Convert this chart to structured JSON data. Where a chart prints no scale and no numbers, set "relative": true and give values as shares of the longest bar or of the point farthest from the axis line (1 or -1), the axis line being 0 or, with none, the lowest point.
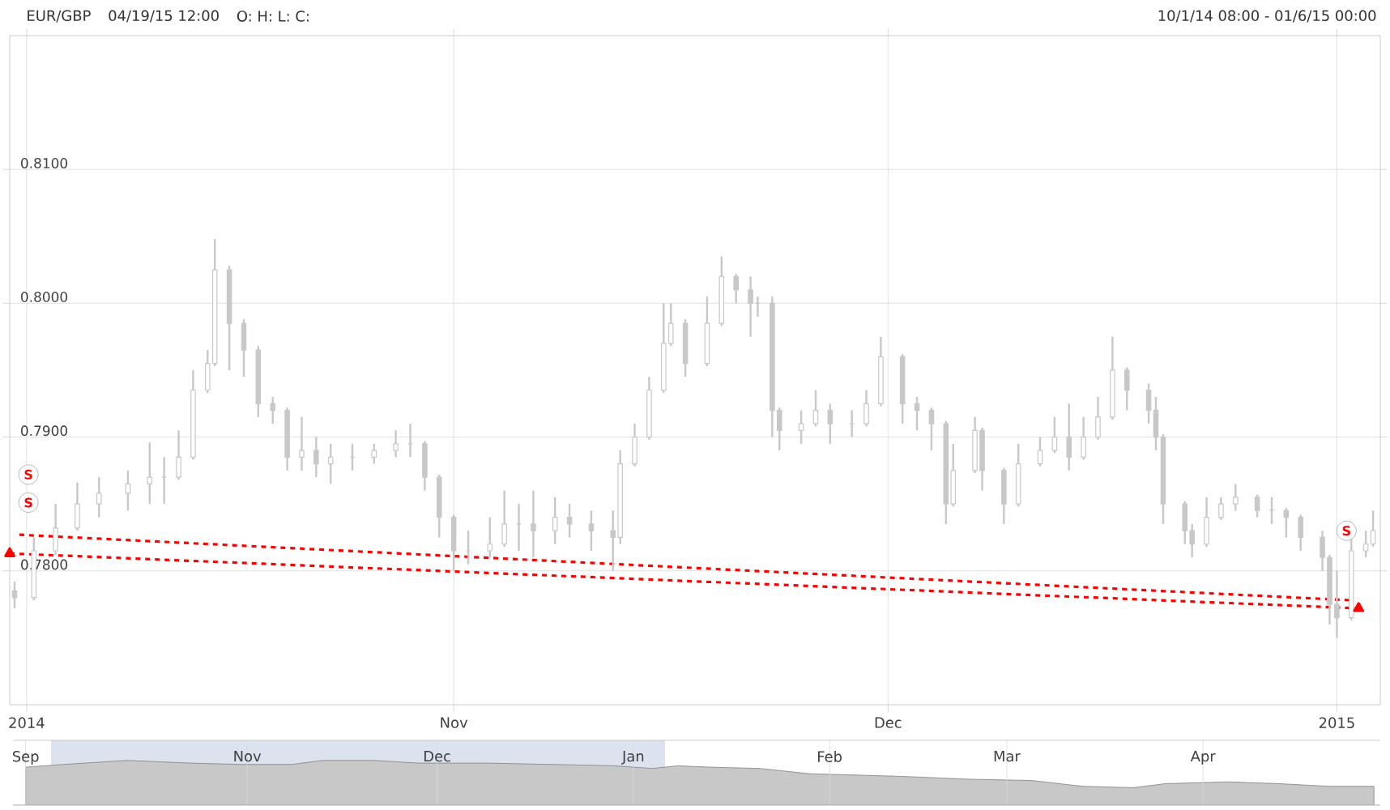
{
  "chart_data": [
    {
      "type": "candlestick",
      "title": "EUR/GBP",
      "annotations": [
        "04/19/15 12:00",
        "O: H: L: C:",
        "10/1/14 08:00 - 01/6/15 00:00",
        {
          "text": "S",
          "x": "2014-10-02T15:00",
          "y": 0.7872
        },
        {
          "text": "S",
          "x": "2014-10-02T15:00",
          "y": 0.7851
        },
        {
          "text": "S",
          "x": "2015-01-01T16:00",
          "y": 0.783
        }
      ],
      "color": "#c8c8c8",
      "x": [
        "2014-10-01T16:00",
        "2014-10-03T00:00",
        "2014-10-04T12:00",
        "2014-10-06T00:00",
        "2014-10-07T12:00",
        "2014-10-09T12:00",
        "2014-10-11T00:00",
        "2014-10-12T00:00",
        "2014-10-13T00:00",
        "2014-10-14T00:00",
        "2014-10-15T00:00",
        "2014-10-15T12:00",
        "2014-10-16T12:00",
        "2014-10-17T12:00",
        "2014-10-18T12:00",
        "2014-10-19T12:00",
        "2014-10-20T12:00",
        "2014-10-21T12:00",
        "2014-10-22T12:00",
        "2014-10-23T12:00",
        "2014-10-25T00:00",
        "2014-10-26T12:00",
        "2014-10-28T00:00",
        "2014-10-29T00:00",
        "2014-10-30T00:00",
        "2014-10-31T00:00",
        "2014-11-01T00:00",
        "2014-11-02T00:00",
        "2014-11-03T12:00",
        "2014-11-04T12:00",
        "2014-11-05T12:00",
        "2014-11-06T12:00",
        "2014-11-08T00:00",
        "2014-11-09T00:00",
        "2014-11-10T12:00",
        "2014-11-12T00:00",
        "2014-11-12T12:00",
        "2014-11-13T12:00",
        "2014-11-14T12:00",
        "2014-11-15T12:00",
        "2014-11-16T00:00",
        "2014-11-17T00:00",
        "2014-11-18T12:00",
        "2014-11-19T12:00",
        "2014-11-20T12:00",
        "2014-11-21T12:00",
        "2014-11-22T00:00",
        "2014-11-23T00:00",
        "2014-11-23T12:00",
        "2014-11-25T00:00",
        "2014-11-26T00:00",
        "2014-11-27T00:00",
        "2014-11-28T12:00",
        "2014-11-29T12:00",
        "2014-11-30T12:00",
        "2014-12-02T00:00",
        "2014-12-03T00:00",
        "2014-12-04T00:00",
        "2014-12-05T00:00",
        "2014-12-05T12:00",
        "2014-12-07T00:00",
        "2014-12-07T12:00",
        "2014-12-09T00:00",
        "2014-12-10T00:00",
        "2014-12-11T12:00",
        "2014-12-12T12:00",
        "2014-12-13T12:00",
        "2014-12-14T12:00",
        "2014-12-15T12:00",
        "2014-12-16T12:00",
        "2014-12-17T12:00",
        "2014-12-19T00:00",
        "2014-12-19T12:00",
        "2014-12-20T00:00",
        "2014-12-21T12:00",
        "2014-12-22T00:00",
        "2014-12-23T00:00",
        "2014-12-24T00:00",
        "2014-12-25T00:00",
        "2014-12-26T12:00",
        "2014-12-27T12:00",
        "2014-12-28T12:00",
        "2014-12-29T12:00",
        "2014-12-31T00:00",
        "2014-12-31T12:00",
        "2015-01-01T00:00",
        "2015-01-02T00:00",
        "2015-01-03T00:00",
        "2015-01-03T12:00"
      ],
      "ohlc": [
        [
          0.7785,
          0.7792,
          0.7772,
          0.778
        ],
        [
          0.778,
          0.7825,
          0.7778,
          0.7815
        ],
        [
          0.7815,
          0.785,
          0.7812,
          0.7832
        ],
        [
          0.7832,
          0.7866,
          0.783,
          0.785
        ],
        [
          0.785,
          0.787,
          0.784,
          0.7858
        ],
        [
          0.7858,
          0.7875,
          0.7845,
          0.7865
        ],
        [
          0.7865,
          0.7896,
          0.785,
          0.787
        ],
        [
          0.787,
          0.7885,
          0.785,
          0.787
        ],
        [
          0.787,
          0.7905,
          0.7868,
          0.7885
        ],
        [
          0.7885,
          0.795,
          0.7883,
          0.7935
        ],
        [
          0.7935,
          0.7965,
          0.7933,
          0.7955
        ],
        [
          0.7955,
          0.8048,
          0.7953,
          0.8025
        ],
        [
          0.8025,
          0.8028,
          0.795,
          0.7985
        ],
        [
          0.7985,
          0.7988,
          0.7945,
          0.7965
        ],
        [
          0.7965,
          0.7968,
          0.7915,
          0.7925
        ],
        [
          0.7925,
          0.793,
          0.791,
          0.792
        ],
        [
          0.792,
          0.7922,
          0.7875,
          0.7885
        ],
        [
          0.7885,
          0.7915,
          0.7875,
          0.789
        ],
        [
          0.789,
          0.79,
          0.787,
          0.788
        ],
        [
          0.788,
          0.7895,
          0.7865,
          0.7885
        ],
        [
          0.7885,
          0.7895,
          0.7875,
          0.7885
        ],
        [
          0.7885,
          0.7895,
          0.788,
          0.789
        ],
        [
          0.789,
          0.7905,
          0.7885,
          0.7895
        ],
        [
          0.7895,
          0.791,
          0.7885,
          0.7895
        ],
        [
          0.7895,
          0.7897,
          0.786,
          0.787
        ],
        [
          0.787,
          0.7872,
          0.7825,
          0.784
        ],
        [
          0.784,
          0.7842,
          0.78,
          0.7815
        ],
        [
          0.7815,
          0.783,
          0.7805,
          0.7815
        ],
        [
          0.7815,
          0.784,
          0.781,
          0.782
        ],
        [
          0.782,
          0.786,
          0.7818,
          0.7835
        ],
        [
          0.7835,
          0.785,
          0.7815,
          0.7835
        ],
        [
          0.7835,
          0.786,
          0.781,
          0.783
        ],
        [
          0.783,
          0.7855,
          0.782,
          0.784
        ],
        [
          0.784,
          0.785,
          0.7825,
          0.7835
        ],
        [
          0.7835,
          0.7845,
          0.7815,
          0.783
        ],
        [
          0.783,
          0.7845,
          0.78,
          0.7825
        ],
        [
          0.7825,
          0.789,
          0.782,
          0.788
        ],
        [
          0.788,
          0.791,
          0.7878,
          0.79
        ],
        [
          0.79,
          0.7945,
          0.7898,
          0.7935
        ],
        [
          0.7935,
          0.8,
          0.7933,
          0.797
        ],
        [
          0.797,
          0.8,
          0.7968,
          0.7985
        ],
        [
          0.7985,
          0.7988,
          0.7945,
          0.7955
        ],
        [
          0.7955,
          0.8005,
          0.7953,
          0.7985
        ],
        [
          0.7985,
          0.8035,
          0.7983,
          0.802
        ],
        [
          0.802,
          0.8022,
          0.8,
          0.801
        ],
        [
          0.801,
          0.802,
          0.7975,
          0.8
        ],
        [
          0.8,
          0.8005,
          0.799,
          0.8
        ],
        [
          0.8,
          0.8005,
          0.79,
          0.792
        ],
        [
          0.792,
          0.7922,
          0.789,
          0.7905
        ],
        [
          0.7905,
          0.792,
          0.7895,
          0.791
        ],
        [
          0.791,
          0.7935,
          0.7908,
          0.792
        ],
        [
          0.792,
          0.7925,
          0.7895,
          0.791
        ],
        [
          0.791,
          0.792,
          0.79,
          0.791
        ],
        [
          0.791,
          0.7935,
          0.7908,
          0.7925
        ],
        [
          0.7925,
          0.7975,
          0.7923,
          0.796
        ],
        [
          0.796,
          0.7962,
          0.791,
          0.7925
        ],
        [
          0.7925,
          0.793,
          0.7905,
          0.792
        ],
        [
          0.792,
          0.7922,
          0.789,
          0.791
        ],
        [
          0.791,
          0.7912,
          0.7835,
          0.785
        ],
        [
          0.785,
          0.7895,
          0.7848,
          0.7875
        ],
        [
          0.7875,
          0.7915,
          0.7873,
          0.7905
        ],
        [
          0.7905,
          0.7907,
          0.786,
          0.7875
        ],
        [
          0.7875,
          0.7877,
          0.7835,
          0.785
        ],
        [
          0.785,
          0.7895,
          0.7848,
          0.788
        ],
        [
          0.788,
          0.79,
          0.7878,
          0.789
        ],
        [
          0.789,
          0.7915,
          0.7888,
          0.79
        ],
        [
          0.79,
          0.7925,
          0.7875,
          0.7885
        ],
        [
          0.7885,
          0.7915,
          0.7883,
          0.79
        ],
        [
          0.79,
          0.793,
          0.7898,
          0.7915
        ],
        [
          0.7915,
          0.7975,
          0.7913,
          0.795
        ],
        [
          0.795,
          0.7952,
          0.792,
          0.7935
        ],
        [
          0.7935,
          0.794,
          0.791,
          0.792
        ],
        [
          0.792,
          0.793,
          0.789,
          0.79
        ],
        [
          0.79,
          0.7902,
          0.7835,
          0.785
        ],
        [
          0.785,
          0.7852,
          0.782,
          0.783
        ],
        [
          0.783,
          0.7835,
          0.781,
          0.782
        ],
        [
          0.782,
          0.7855,
          0.7818,
          0.784
        ],
        [
          0.784,
          0.7855,
          0.7838,
          0.785
        ],
        [
          0.785,
          0.7865,
          0.7845,
          0.7855
        ],
        [
          0.7855,
          0.7857,
          0.784,
          0.7845
        ],
        [
          0.7845,
          0.7855,
          0.7835,
          0.7845
        ],
        [
          0.7845,
          0.7847,
          0.7825,
          0.784
        ],
        [
          0.784,
          0.7842,
          0.7815,
          0.7825
        ],
        [
          0.7825,
          0.783,
          0.78,
          0.781
        ],
        [
          0.781,
          0.7812,
          0.776,
          0.7775
        ],
        [
          0.7775,
          0.78,
          0.775,
          0.7765
        ],
        [
          0.7765,
          0.7825,
          0.7763,
          0.7815
        ],
        [
          0.7815,
          0.783,
          0.781,
          0.782
        ],
        [
          0.782,
          0.7845,
          0.7818,
          0.783
        ]
      ],
      "series": [
        {
          "type": "line",
          "x": [
            "2014-10-01T08:00",
            "2015-01-02T12:00"
          ],
          "values": [
            0.7813,
            0.7772
          ],
          "color": "#ff0000",
          "line_style": "dashed",
          "marker": "triangle"
        },
        {
          "type": "line",
          "x": [
            "2014-10-02T00:00",
            "2015-01-02T00:00"
          ],
          "values": [
            0.7827,
            0.7778
          ],
          "color": "#ff0000",
          "line_style": "dashed",
          "marker": "none"
        }
      ],
      "xlim": [
        "2014-10-01T08:00",
        "2015-01-04T00:00"
      ],
      "ylim": [
        0.77,
        0.82
      ],
      "xticks": [
        {
          "value": "2014-10-02T12:00",
          "label": "2014"
        },
        {
          "value": "2014-11-01T00:00",
          "label": "Nov"
        },
        {
          "value": "2014-12-01T00:00",
          "label": "Dec"
        },
        {
          "value": "2015-01-01T00:00",
          "label": "2015"
        }
      ],
      "yticks": [
        {
          "value": 0.78,
          "label": "0.7800"
        },
        {
          "value": 0.79,
          "label": "0.7900"
        },
        {
          "value": 0.8,
          "label": "0.8000"
        },
        {
          "value": 0.81,
          "label": "0.8100"
        }
      ],
      "grid": true
    },
    {
      "type": "area",
      "relative": true,
      "color": "#c8c8c8",
      "x": [
        "2014-09-27",
        "2014-10-03",
        "2014-10-13",
        "2014-10-23",
        "2014-10-31",
        "2014-11-08",
        "2014-11-13",
        "2014-11-21",
        "2014-11-28",
        "2014-12-09",
        "2014-12-19",
        "2014-12-29",
        "2015-01-04",
        "2015-01-08",
        "2015-01-13",
        "2015-01-21",
        "2015-01-29",
        "2015-02-06",
        "2015-02-13",
        "2015-02-23",
        "2015-03-05",
        "2015-03-13",
        "2015-03-21",
        "2015-03-26",
        "2015-04-05",
        "2015-04-13",
        "2015-04-21",
        "2015-04-28"
      ],
      "values": [
        0.85,
        0.91,
        1,
        0.94,
        0.91,
        0.91,
        1,
        1,
        0.94,
        0.94,
        0.91,
        0.88,
        0.82,
        0.88,
        0.85,
        0.82,
        0.7,
        0.67,
        0.64,
        0.58,
        0.55,
        0.42,
        0.39,
        0.48,
        0.52,
        0.48,
        0.42,
        0.42
      ],
      "xlim": [
        "2014-09-25",
        "2015-04-29"
      ],
      "xticks": [
        {
          "value": "2014-09-27",
          "label": "Sep"
        },
        {
          "value": "2014-11-01",
          "label": "Nov"
        },
        {
          "value": "2014-12-01",
          "label": "Dec"
        },
        {
          "value": "2015-01-01",
          "label": "Jan"
        },
        {
          "value": "2015-02-01",
          "label": "Feb"
        },
        {
          "value": "2015-03-01",
          "label": "Mar"
        },
        {
          "value": "2015-04-01",
          "label": "Apr"
        }
      ],
      "grid": "x",
      "bands": [
        {
          "axis": "x",
          "from": "2014-10-01",
          "to": "2015-01-06",
          "color": "#dde2ef"
        }
      ]
    }
  ]
}
